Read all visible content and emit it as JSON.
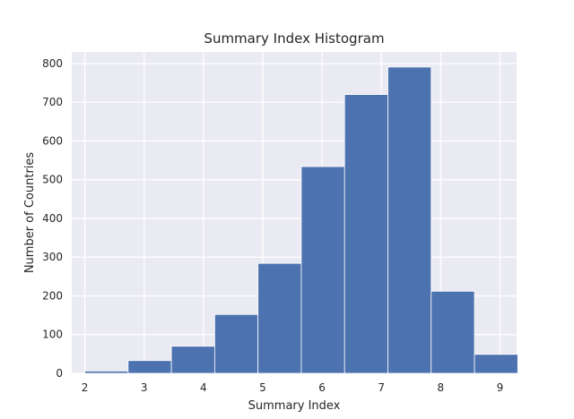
{
  "chart_data": {
    "type": "bar",
    "title": "Summary Index Histogram",
    "xlabel": "Summary Index",
    "ylabel": "Number of Countries",
    "xlim": [
      1.78,
      9.28
    ],
    "ylim": [
      0,
      830
    ],
    "x_ticks": [
      2,
      3,
      4,
      5,
      6,
      7,
      8,
      9
    ],
    "y_ticks": [
      0,
      100,
      200,
      300,
      400,
      500,
      600,
      700,
      800
    ],
    "grid": true,
    "bins": [
      {
        "start": 2.0,
        "end": 2.73,
        "value": 6
      },
      {
        "start": 2.73,
        "end": 3.46,
        "value": 33
      },
      {
        "start": 3.46,
        "end": 4.19,
        "value": 70
      },
      {
        "start": 4.19,
        "end": 4.92,
        "value": 152
      },
      {
        "start": 4.92,
        "end": 5.65,
        "value": 284
      },
      {
        "start": 5.65,
        "end": 6.38,
        "value": 534
      },
      {
        "start": 6.38,
        "end": 7.11,
        "value": 720
      },
      {
        "start": 7.11,
        "end": 7.84,
        "value": 791
      },
      {
        "start": 7.84,
        "end": 8.57,
        "value": 212
      },
      {
        "start": 8.57,
        "end": 9.3,
        "value": 49
      }
    ],
    "colors": {
      "bar": "#4C72B0",
      "plot_bg": "#EAEAF2",
      "grid": "#FFFFFF",
      "text": "#262626"
    }
  }
}
